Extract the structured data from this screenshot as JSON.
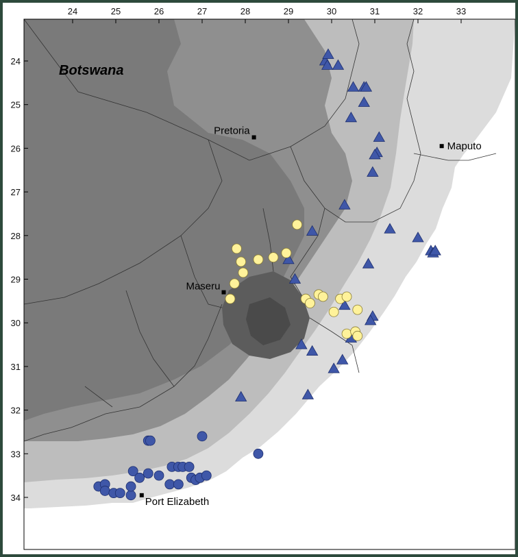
{
  "map": {
    "longitude_ticks": [
      "24",
      "25",
      "26",
      "27",
      "28",
      "29",
      "30",
      "31",
      "32",
      "33"
    ],
    "latitude_ticks": [
      "24",
      "25",
      "26",
      "27",
      "28",
      "29",
      "30",
      "31",
      "32",
      "33",
      "34"
    ],
    "country_label": "Botswana",
    "places": [
      {
        "name": "Pretoria",
        "lon": 28.2,
        "lat": -25.75
      },
      {
        "name": "Maputo",
        "lon": 32.55,
        "lat": -25.95
      },
      {
        "name": "Maseru",
        "lon": 27.5,
        "lat": -29.3
      },
      {
        "name": "Port Elizabeth",
        "lon": 25.6,
        "lat": -33.95
      }
    ],
    "colors": {
      "ocean": "#ffffff",
      "land_low": "#dcdcdc",
      "land_mid": "#bdbdbd",
      "land_high": "#8f8f8f",
      "land_higher": "#7a7a7a",
      "land_highest": "#5c5c5c",
      "triangle": "#3f57a8",
      "circle_yellow": "#fff29a",
      "circle_blue": "#3f57a8",
      "frame": "#2d4a3c"
    },
    "triangles": [
      {
        "lon": 29.85,
        "lat": -24.0
      },
      {
        "lon": 29.92,
        "lat": -23.85
      },
      {
        "lon": 29.9,
        "lat": -24.1
      },
      {
        "lon": 30.15,
        "lat": -24.1
      },
      {
        "lon": 30.5,
        "lat": -24.6
      },
      {
        "lon": 30.75,
        "lat": -24.6
      },
      {
        "lon": 30.8,
        "lat": -24.6
      },
      {
        "lon": 30.75,
        "lat": -24.95
      },
      {
        "lon": 30.45,
        "lat": -25.3
      },
      {
        "lon": 31.1,
        "lat": -25.75
      },
      {
        "lon": 31.05,
        "lat": -26.1
      },
      {
        "lon": 31.0,
        "lat": -26.15
      },
      {
        "lon": 30.95,
        "lat": -26.55
      },
      {
        "lon": 30.3,
        "lat": -27.3
      },
      {
        "lon": 31.35,
        "lat": -27.85
      },
      {
        "lon": 32.0,
        "lat": -28.05
      },
      {
        "lon": 32.3,
        "lat": -28.35
      },
      {
        "lon": 32.35,
        "lat": -28.4
      },
      {
        "lon": 32.4,
        "lat": -28.35
      },
      {
        "lon": 29.55,
        "lat": -27.9
      },
      {
        "lon": 29.0,
        "lat": -28.55
      },
      {
        "lon": 30.85,
        "lat": -28.65
      },
      {
        "lon": 29.15,
        "lat": -29.0
      },
      {
        "lon": 30.3,
        "lat": -29.6
      },
      {
        "lon": 30.95,
        "lat": -29.85
      },
      {
        "lon": 30.9,
        "lat": -29.95
      },
      {
        "lon": 30.45,
        "lat": -30.35
      },
      {
        "lon": 29.3,
        "lat": -30.5
      },
      {
        "lon": 29.55,
        "lat": -30.65
      },
      {
        "lon": 30.25,
        "lat": -30.85
      },
      {
        "lon": 30.05,
        "lat": -31.05
      },
      {
        "lon": 27.9,
        "lat": -31.7
      },
      {
        "lon": 29.45,
        "lat": -31.65
      }
    ],
    "circles_yellow": [
      {
        "lon": 29.2,
        "lat": -27.75
      },
      {
        "lon": 27.8,
        "lat": -28.3
      },
      {
        "lon": 27.9,
        "lat": -28.6
      },
      {
        "lon": 28.3,
        "lat": -28.55
      },
      {
        "lon": 28.65,
        "lat": -28.5
      },
      {
        "lon": 28.95,
        "lat": -28.4
      },
      {
        "lon": 27.95,
        "lat": -28.85
      },
      {
        "lon": 27.75,
        "lat": -29.1
      },
      {
        "lon": 27.65,
        "lat": -29.45
      },
      {
        "lon": 29.4,
        "lat": -29.45
      },
      {
        "lon": 29.5,
        "lat": -29.55
      },
      {
        "lon": 29.7,
        "lat": -29.35
      },
      {
        "lon": 29.8,
        "lat": -29.4
      },
      {
        "lon": 30.2,
        "lat": -29.45
      },
      {
        "lon": 30.35,
        "lat": -29.4
      },
      {
        "lon": 30.05,
        "lat": -29.75
      },
      {
        "lon": 30.6,
        "lat": -29.7
      },
      {
        "lon": 30.35,
        "lat": -30.25
      },
      {
        "lon": 30.55,
        "lat": -30.2
      },
      {
        "lon": 30.6,
        "lat": -30.3
      }
    ],
    "circles_blue": [
      {
        "lon": 25.75,
        "lat": -32.7
      },
      {
        "lon": 25.8,
        "lat": -32.7
      },
      {
        "lon": 27.0,
        "lat": -32.6
      },
      {
        "lon": 28.3,
        "lat": -33.0
      },
      {
        "lon": 24.6,
        "lat": -33.75
      },
      {
        "lon": 24.75,
        "lat": -33.7
      },
      {
        "lon": 24.75,
        "lat": -33.85
      },
      {
        "lon": 24.95,
        "lat": -33.9
      },
      {
        "lon": 25.1,
        "lat": -33.9
      },
      {
        "lon": 25.35,
        "lat": -33.95
      },
      {
        "lon": 25.35,
        "lat": -33.75
      },
      {
        "lon": 25.4,
        "lat": -33.4
      },
      {
        "lon": 25.55,
        "lat": -33.55
      },
      {
        "lon": 25.75,
        "lat": -33.45
      },
      {
        "lon": 26.0,
        "lat": -33.5
      },
      {
        "lon": 26.25,
        "lat": -33.7
      },
      {
        "lon": 26.45,
        "lat": -33.7
      },
      {
        "lon": 26.3,
        "lat": -33.3
      },
      {
        "lon": 26.45,
        "lat": -33.3
      },
      {
        "lon": 26.55,
        "lat": -33.3
      },
      {
        "lon": 26.7,
        "lat": -33.3
      },
      {
        "lon": 26.75,
        "lat": -33.55
      },
      {
        "lon": 26.85,
        "lat": -33.6
      },
      {
        "lon": 26.95,
        "lat": -33.55
      },
      {
        "lon": 27.1,
        "lat": -33.5
      }
    ]
  }
}
